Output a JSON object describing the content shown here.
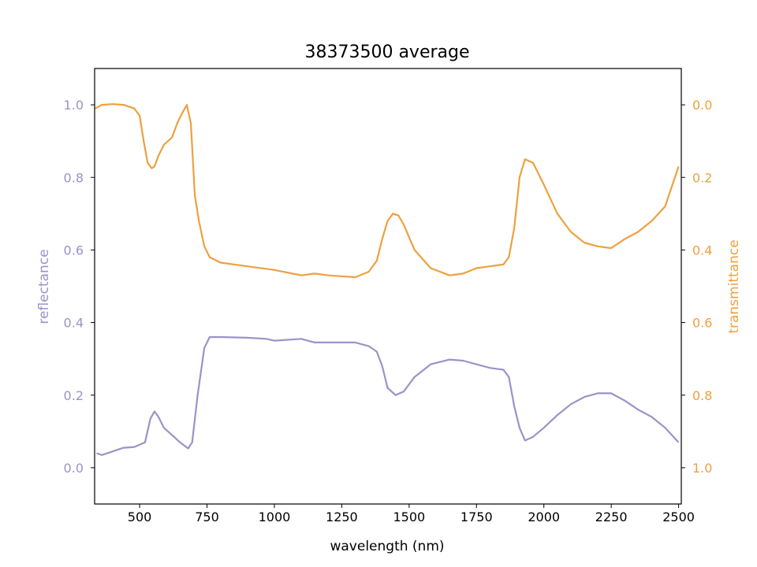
{
  "chart_data": {
    "type": "line",
    "title": "38373500 average",
    "xlabel": "wavelength (nm)",
    "ylabel_left": "reflectance",
    "ylabel_right": "transmittance",
    "xlim": [
      333,
      2510
    ],
    "ylim_left": [
      -0.1,
      1.1
    ],
    "ylim_right": [
      1.1,
      -0.1
    ],
    "right_axis_inverted": true,
    "grid": false,
    "colors": {
      "reflectance": "#9a93c8",
      "transmittance": "#eda140"
    },
    "x_ticks": [
      500,
      750,
      1000,
      1250,
      1500,
      1750,
      2000,
      2250,
      2500
    ],
    "x_tick_labels": [
      "500",
      "750",
      "1000",
      "1250",
      "1500",
      "1750",
      "2000",
      "2250",
      "2500"
    ],
    "left_ticks": [
      0.0,
      0.2,
      0.4,
      0.6,
      0.8,
      1.0
    ],
    "left_tick_labels": [
      "0.0",
      "0.2",
      "0.4",
      "0.6",
      "0.8",
      "1.0"
    ],
    "right_ticks": [
      0.0,
      0.2,
      0.4,
      0.6,
      0.8,
      1.0
    ],
    "right_tick_labels": [
      "0.0",
      "0.2",
      "0.4",
      "0.6",
      "0.8",
      "1.0"
    ],
    "series": [
      {
        "key": "reflectance",
        "axis": "left",
        "x": [
          340,
          360,
          400,
          440,
          480,
          520,
          540,
          555,
          570,
          590,
          620,
          650,
          680,
          695,
          715,
          740,
          760,
          800,
          900,
          970,
          1000,
          1100,
          1150,
          1200,
          1300,
          1350,
          1380,
          1400,
          1420,
          1450,
          1480,
          1520,
          1580,
          1650,
          1700,
          1800,
          1850,
          1870,
          1890,
          1910,
          1930,
          1960,
          2000,
          2050,
          2100,
          2150,
          2200,
          2250,
          2300,
          2350,
          2400,
          2450,
          2500
        ],
        "y": [
          0.04,
          0.035,
          0.045,
          0.055,
          0.057,
          0.07,
          0.135,
          0.155,
          0.14,
          0.11,
          0.09,
          0.07,
          0.053,
          0.07,
          0.2,
          0.33,
          0.36,
          0.36,
          0.358,
          0.355,
          0.35,
          0.355,
          0.345,
          0.345,
          0.345,
          0.335,
          0.32,
          0.28,
          0.22,
          0.2,
          0.21,
          0.25,
          0.285,
          0.298,
          0.295,
          0.275,
          0.27,
          0.25,
          0.17,
          0.11,
          0.075,
          0.085,
          0.11,
          0.145,
          0.175,
          0.195,
          0.205,
          0.205,
          0.185,
          0.16,
          0.14,
          0.11,
          0.07
        ]
      },
      {
        "key": "transmittance",
        "axis": "right",
        "x": [
          335,
          360,
          400,
          440,
          480,
          500,
          515,
          530,
          545,
          555,
          570,
          590,
          620,
          640,
          660,
          675,
          690,
          705,
          720,
          740,
          760,
          800,
          900,
          1000,
          1100,
          1150,
          1200,
          1300,
          1350,
          1380,
          1400,
          1420,
          1440,
          1460,
          1480,
          1520,
          1580,
          1650,
          1700,
          1750,
          1800,
          1850,
          1870,
          1890,
          1910,
          1930,
          1960,
          2000,
          2050,
          2100,
          2150,
          2200,
          2250,
          2300,
          2350,
          2400,
          2450,
          2500
        ],
        "y": [
          0.01,
          0.0,
          -0.002,
          0.0,
          0.01,
          0.03,
          0.1,
          0.16,
          0.175,
          0.17,
          0.14,
          0.11,
          0.09,
          0.05,
          0.02,
          0.0,
          0.05,
          0.25,
          0.32,
          0.39,
          0.42,
          0.435,
          0.445,
          0.455,
          0.47,
          0.465,
          0.47,
          0.475,
          0.46,
          0.43,
          0.37,
          0.32,
          0.3,
          0.305,
          0.33,
          0.4,
          0.45,
          0.47,
          0.465,
          0.45,
          0.445,
          0.44,
          0.42,
          0.34,
          0.2,
          0.15,
          0.16,
          0.22,
          0.3,
          0.35,
          0.38,
          0.39,
          0.395,
          0.37,
          0.35,
          0.32,
          0.28,
          0.17
        ]
      }
    ]
  }
}
